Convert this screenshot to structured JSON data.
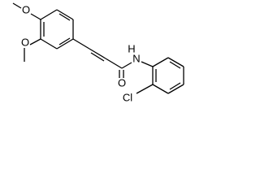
{
  "atoms": [
    {
      "label": "O"
    },
    {
      "label": "O"
    },
    {
      "label": "O"
    },
    {
      "label": "H"
    },
    {
      "label": "N"
    },
    {
      "label": "Cl"
    }
  ]
}
